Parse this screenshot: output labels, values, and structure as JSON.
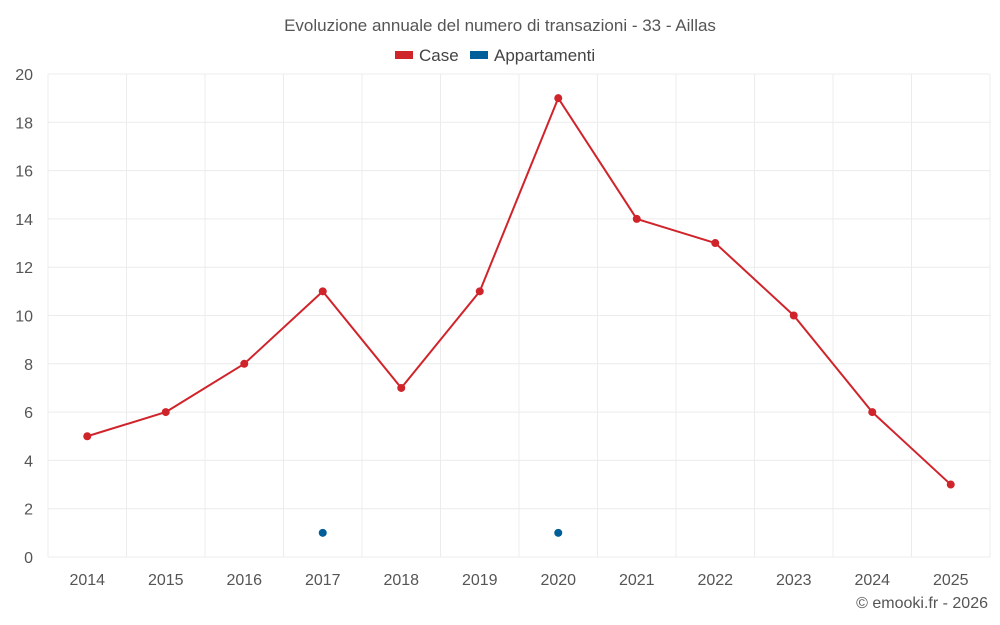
{
  "chart_data": {
    "type": "line",
    "title": "Evoluzione annuale del numero di transazioni - 33 - Aillas",
    "categories": [
      "2014",
      "2015",
      "2016",
      "2017",
      "2018",
      "2019",
      "2020",
      "2021",
      "2022",
      "2023",
      "2024",
      "2025"
    ],
    "series": [
      {
        "name": "Case",
        "color": "#d0242b",
        "values": [
          5,
          6,
          8,
          11,
          7,
          11,
          19,
          14,
          13,
          10,
          6,
          3
        ],
        "style": "line"
      },
      {
        "name": "Appartamenti",
        "color": "#005f99",
        "values": [
          null,
          null,
          null,
          1,
          null,
          null,
          1,
          null,
          null,
          null,
          null,
          null
        ],
        "style": "points"
      }
    ],
    "yticks": [
      0,
      2,
      4,
      6,
      8,
      10,
      12,
      14,
      16,
      18,
      20
    ],
    "ylim": [
      0,
      20
    ],
    "grid": true,
    "legend_position": "top-center"
  },
  "footer": "© emooki.fr - 2026"
}
